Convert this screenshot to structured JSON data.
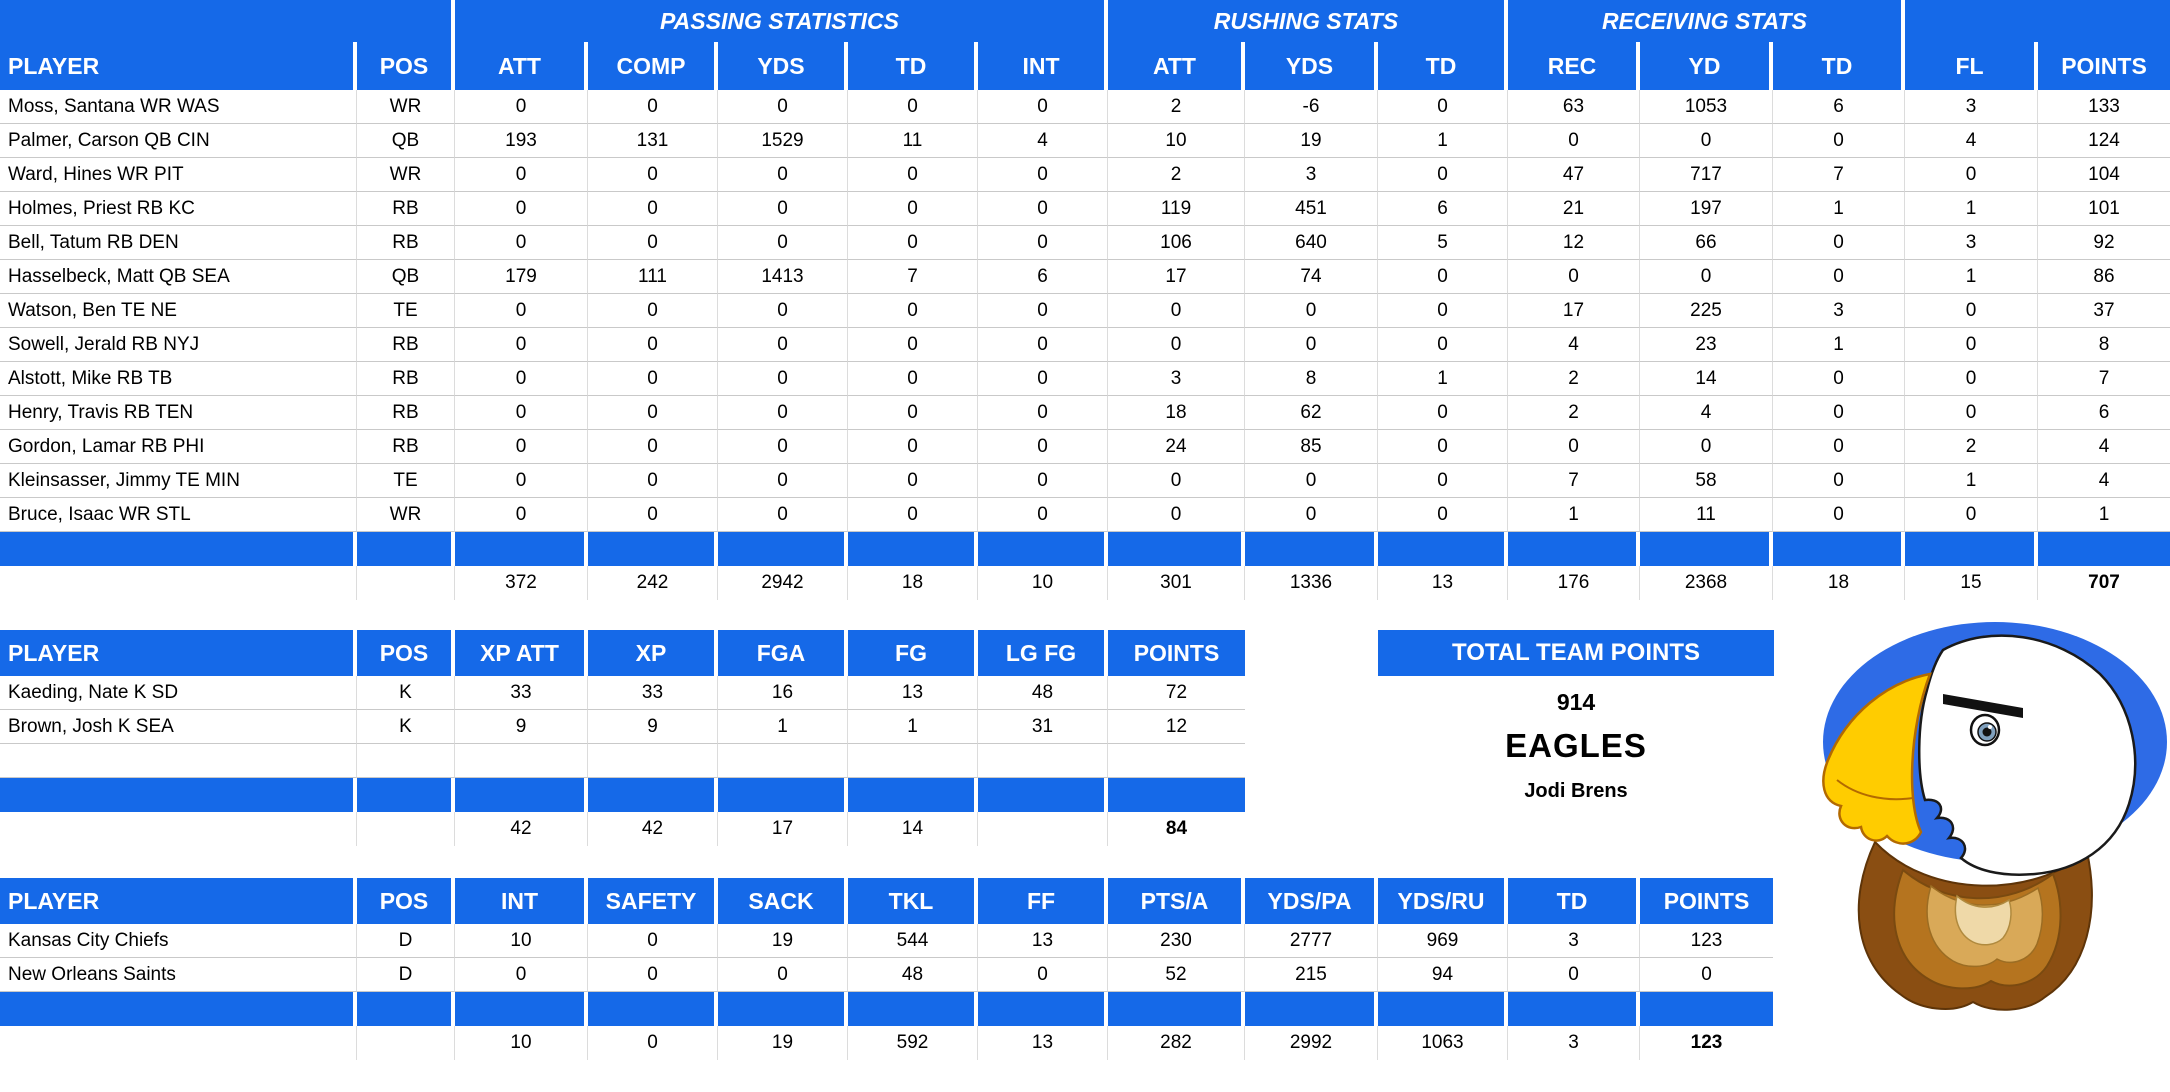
{
  "colors": {
    "header_blue": "#1569E8",
    "logo_ellipse_blue": "#2E6BE6"
  },
  "offense_table": {
    "group_headers": [
      {
        "label": "",
        "span": 2
      },
      {
        "label": "PASSING STATISTICS",
        "span": 5
      },
      {
        "label": "RUSHING STATS",
        "span": 3
      },
      {
        "label": "RECEIVING STATS",
        "span": 3
      },
      {
        "label": "",
        "span": 2
      }
    ],
    "columns": [
      "PLAYER",
      "POS",
      "ATT",
      "COMP",
      "YDS",
      "TD",
      "INT",
      "ATT",
      "YDS",
      "TD",
      "REC",
      "YD",
      "TD",
      "FL",
      "POINTS"
    ],
    "rows": [
      [
        "Moss, Santana WR WAS",
        "WR",
        "0",
        "0",
        "0",
        "0",
        "0",
        "2",
        "-6",
        "0",
        "63",
        "1053",
        "6",
        "3",
        "133"
      ],
      [
        "Palmer, Carson QB CIN",
        "QB",
        "193",
        "131",
        "1529",
        "11",
        "4",
        "10",
        "19",
        "1",
        "0",
        "0",
        "0",
        "4",
        "124"
      ],
      [
        "Ward, Hines WR PIT",
        "WR",
        "0",
        "0",
        "0",
        "0",
        "0",
        "2",
        "3",
        "0",
        "47",
        "717",
        "7",
        "0",
        "104"
      ],
      [
        "Holmes, Priest RB KC",
        "RB",
        "0",
        "0",
        "0",
        "0",
        "0",
        "119",
        "451",
        "6",
        "21",
        "197",
        "1",
        "1",
        "101"
      ],
      [
        "Bell, Tatum RB DEN",
        "RB",
        "0",
        "0",
        "0",
        "0",
        "0",
        "106",
        "640",
        "5",
        "12",
        "66",
        "0",
        "3",
        "92"
      ],
      [
        "Hasselbeck, Matt QB SEA",
        "QB",
        "179",
        "111",
        "1413",
        "7",
        "6",
        "17",
        "74",
        "0",
        "0",
        "0",
        "0",
        "1",
        "86"
      ],
      [
        "Watson, Ben TE NE",
        "TE",
        "0",
        "0",
        "0",
        "0",
        "0",
        "0",
        "0",
        "0",
        "17",
        "225",
        "3",
        "0",
        "37"
      ],
      [
        "Sowell, Jerald RB NYJ",
        "RB",
        "0",
        "0",
        "0",
        "0",
        "0",
        "0",
        "0",
        "0",
        "4",
        "23",
        "1",
        "0",
        "8"
      ],
      [
        "Alstott, Mike RB TB",
        "RB",
        "0",
        "0",
        "0",
        "0",
        "0",
        "3",
        "8",
        "1",
        "2",
        "14",
        "0",
        "0",
        "7"
      ],
      [
        "Henry, Travis RB TEN",
        "RB",
        "0",
        "0",
        "0",
        "0",
        "0",
        "18",
        "62",
        "0",
        "2",
        "4",
        "0",
        "0",
        "6"
      ],
      [
        "Gordon, Lamar RB PHI",
        "RB",
        "0",
        "0",
        "0",
        "0",
        "0",
        "24",
        "85",
        "0",
        "0",
        "0",
        "0",
        "2",
        "4"
      ],
      [
        "Kleinsasser, Jimmy TE MIN",
        "TE",
        "0",
        "0",
        "0",
        "0",
        "0",
        "0",
        "0",
        "0",
        "7",
        "58",
        "0",
        "1",
        "4"
      ],
      [
        "Bruce, Isaac WR STL",
        "WR",
        "0",
        "0",
        "0",
        "0",
        "0",
        "0",
        "0",
        "0",
        "1",
        "11",
        "0",
        "0",
        "1"
      ]
    ],
    "totals": [
      "",
      "",
      "372",
      "242",
      "2942",
      "18",
      "10",
      "301",
      "1336",
      "13",
      "176",
      "2368",
      "18",
      "15",
      "707"
    ]
  },
  "kicker_table": {
    "columns": [
      "PLAYER",
      "POS",
      "XP ATT",
      "XP",
      "FGA",
      "FG",
      "LG FG",
      "POINTS"
    ],
    "rows": [
      [
        "Kaeding, Nate K SD",
        "K",
        "33",
        "33",
        "16",
        "13",
        "48",
        "72"
      ],
      [
        "Brown, Josh K SEA",
        "K",
        "9",
        "9",
        "1",
        "1",
        "31",
        "12"
      ],
      [
        "",
        "",
        "",
        "",
        "",
        "",
        "",
        ""
      ]
    ],
    "totals": [
      "",
      "",
      "42",
      "42",
      "17",
      "14",
      "",
      "84"
    ]
  },
  "defense_table": {
    "columns": [
      "PLAYER",
      "POS",
      "INT",
      "SAFETY",
      "SACK",
      "TKL",
      "FF",
      "PTS/A",
      "YDS/PA",
      "YDS/RU",
      "TD",
      "POINTS"
    ],
    "rows": [
      [
        "Kansas City Chiefs",
        "D",
        "10",
        "0",
        "19",
        "544",
        "13",
        "230",
        "2777",
        "969",
        "3",
        "123"
      ],
      [
        "New Orleans Saints",
        "D",
        "0",
        "0",
        "0",
        "48",
        "0",
        "52",
        "215",
        "94",
        "0",
        "0"
      ]
    ],
    "totals": [
      "",
      "",
      "10",
      "0",
      "19",
      "592",
      "13",
      "282",
      "2992",
      "1063",
      "3",
      "123"
    ]
  },
  "team_summary": {
    "title": "TOTAL TEAM POINTS",
    "points": "914",
    "team_name": "EAGLES",
    "owner": "Jodi Brens",
    "logo_icon": "eagle-mascot-logo"
  }
}
